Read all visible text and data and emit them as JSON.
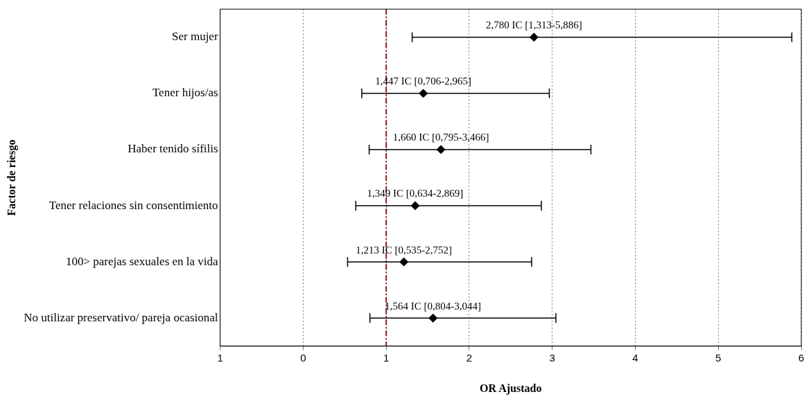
{
  "chart_data": {
    "type": "scatter",
    "orientation": "horizontal",
    "xlabel": "OR Ajustado",
    "ylabel": "Factor de riesgo",
    "categories": [
      "Ser mujer",
      "Tener hijos/as",
      "Haber tenido sífilis",
      "Tener relaciones sin consentimiento",
      "100> parejas sexuales en la vida",
      "No utilizar preservativo/ pareja ocasional"
    ],
    "values": [
      2.78,
      1.447,
      1.66,
      1.349,
      1.213,
      1.564
    ],
    "errors": [
      [
        1.313,
        5.886
      ],
      [
        0.706,
        2.965
      ],
      [
        0.795,
        3.466
      ],
      [
        0.634,
        2.869
      ],
      [
        0.535,
        2.752
      ],
      [
        0.804,
        3.044
      ]
    ],
    "value_labels": [
      "2,780 IC [1,313-5,886]",
      "1,447 IC [0,706-2,965]",
      "1,660 IC [0,795-3,466]",
      "1,349 IC [0,634-2,869]",
      "1,213 IC [0,535-2,752]",
      "1,564 IC [0,804-3,044]"
    ],
    "color": "#000000",
    "marker": "diamond",
    "grid": "x",
    "legend": false,
    "xlim": [
      -1,
      6
    ],
    "xticks": [
      {
        "value": -1,
        "label": "1"
      },
      0,
      1,
      2,
      3,
      4,
      5,
      6
    ],
    "ref_lines": [
      {
        "axis": "x",
        "value": 1,
        "color": "#8b1a1a",
        "line_style": "dashed"
      }
    ]
  }
}
